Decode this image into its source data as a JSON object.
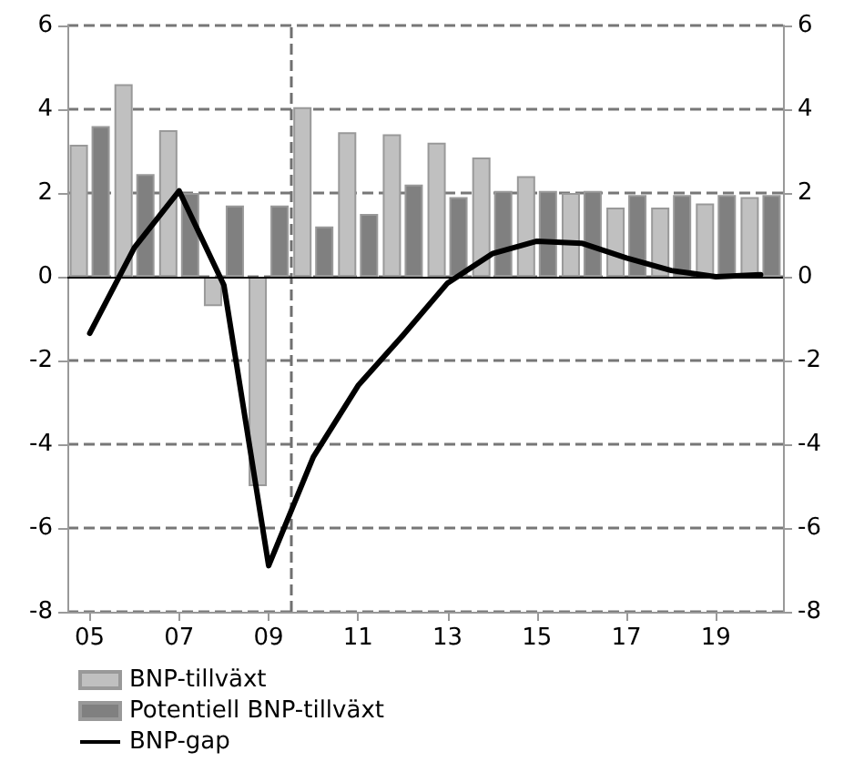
{
  "chart_data": {
    "type": "bar",
    "x": [
      2005,
      2006,
      2007,
      2008,
      2009,
      2010,
      2011,
      2012,
      2013,
      2014,
      2015,
      2016,
      2017,
      2018,
      2019,
      2020
    ],
    "xlim": [
      2004.5,
      2020.5
    ],
    "xticks": [
      {
        "value": 2005,
        "label": "05"
      },
      {
        "value": 2007,
        "label": "07"
      },
      {
        "value": 2009,
        "label": "09"
      },
      {
        "value": 2011,
        "label": "11"
      },
      {
        "value": 2013,
        "label": "13"
      },
      {
        "value": 2015,
        "label": "15"
      },
      {
        "value": 2017,
        "label": "17"
      },
      {
        "value": 2019,
        "label": "19"
      }
    ],
    "series": [
      {
        "name": "BNP-tillväxt",
        "color": "#c0c0c0",
        "values": [
          3.15,
          4.6,
          3.5,
          -0.7,
          -5.0,
          4.05,
          3.45,
          3.4,
          3.2,
          2.85,
          2.4,
          2.0,
          1.65,
          1.65,
          1.75,
          1.9
        ]
      },
      {
        "name": "Potentiell BNP-tillväxt",
        "color": "#808080",
        "values": [
          3.6,
          2.45,
          2.0,
          1.7,
          1.7,
          1.2,
          1.5,
          2.2,
          1.9,
          2.05,
          2.05,
          2.05,
          1.95,
          1.95,
          1.95,
          1.95
        ]
      },
      {
        "name": "BNP-gap",
        "type": "line",
        "color": "#000000",
        "values": [
          -1.35,
          0.7,
          2.05,
          -0.2,
          -6.9,
          -4.3,
          -2.6,
          -1.4,
          -0.15,
          0.55,
          0.85,
          0.8,
          0.45,
          0.15,
          0.0,
          0.05
        ]
      }
    ],
    "ylim": [
      -8,
      6
    ],
    "yticks": [
      -8,
      -6,
      -4,
      -2,
      0,
      2,
      4,
      6
    ],
    "y2lim": [
      -8,
      6
    ],
    "y2ticks": [
      -8,
      -6,
      -4,
      -2,
      0,
      2,
      4,
      6
    ],
    "ref_lines": [
      {
        "axis": "x",
        "value": 2009.5,
        "color": "#707070",
        "line_style": "dashed"
      }
    ],
    "grid": "y",
    "legend": "bottom left",
    "marker": "none",
    "line_style": "solid"
  }
}
